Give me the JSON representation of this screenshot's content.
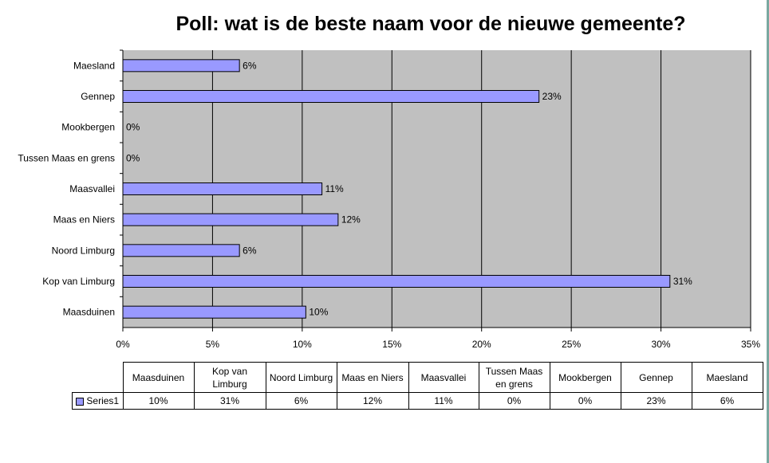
{
  "chart_data": {
    "type": "bar",
    "orientation": "horizontal",
    "title": "Poll: wat is de beste naam voor de nieuwe gemeente?",
    "categories": [
      "Maesland",
      "Gennep",
      "Mookbergen",
      "Tussen Maas en grens",
      "Maasvallei",
      "Maas en Niers",
      "Noord Limburg",
      "Kop van Limburg",
      "Maasduinen"
    ],
    "series": [
      {
        "name": "Series1",
        "values": [
          6.5,
          23.2,
          0,
          0,
          11.1,
          12.0,
          6.5,
          30.5,
          10.2
        ],
        "labels": [
          "6%",
          "23%",
          "0%",
          "0%",
          "11%",
          "12%",
          "6%",
          "31%",
          "10%"
        ],
        "color": "#9999ff"
      }
    ],
    "xlim": [
      0,
      35
    ],
    "xticks": [
      "0%",
      "5%",
      "10%",
      "15%",
      "20%",
      "25%",
      "30%",
      "35%"
    ],
    "grid": true,
    "plot_background": "#c0c0c0",
    "data_table": {
      "legend_entry": "Series1",
      "columns": [
        "Maasduinen",
        "Kop van Limburg",
        "Noord Limburg",
        "Maas en Niers",
        "Maasvallei",
        "Tussen Maas en grens",
        "Mookbergen",
        "Gennep",
        "Maesland"
      ],
      "values": [
        "10%",
        "31%",
        "6%",
        "12%",
        "11%",
        "0%",
        "0%",
        "23%",
        "6%"
      ]
    }
  }
}
